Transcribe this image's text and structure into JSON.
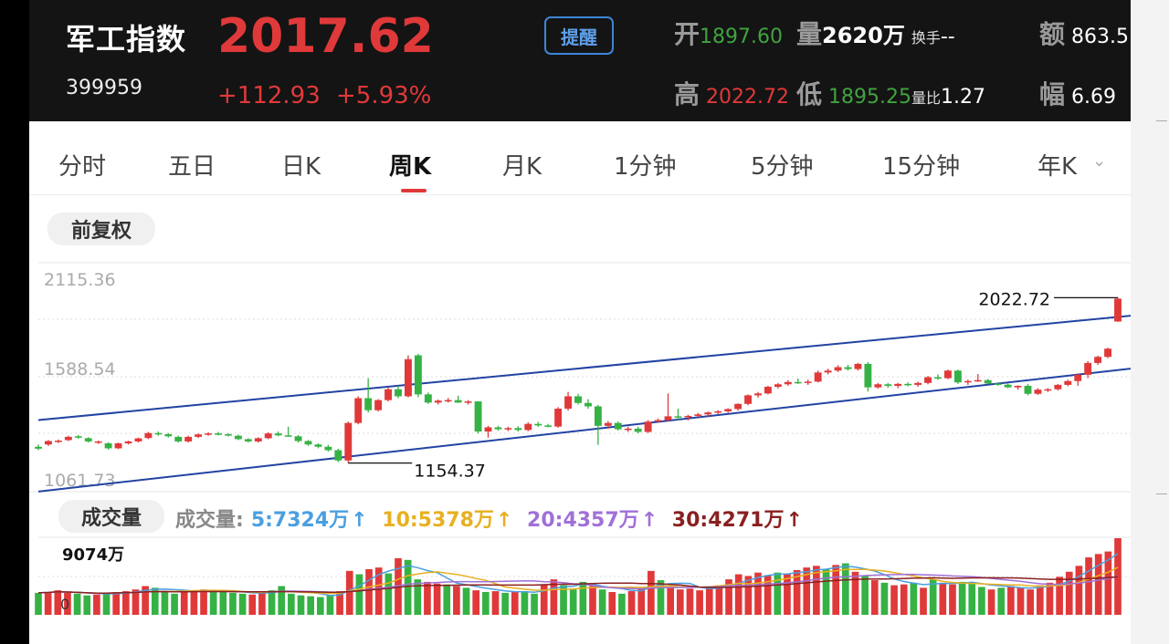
{
  "header": {
    "name": "军工指数",
    "code": "399959",
    "price": "2017.62",
    "change": "+112.93",
    "change_pct": "+5.93%",
    "alert_label": "提醒",
    "open_label": "开",
    "open_value": "1897.60",
    "volume_label": "量",
    "volume_value": "2620万",
    "turnover_label": "换手",
    "turnover_value": "--",
    "amount_label": "额",
    "amount_value": "863.5",
    "high_label": "高",
    "high_value": "2022.72",
    "low_label": "低",
    "low_value": "1895.25",
    "vol_ratio_label": "量比",
    "vol_ratio_value": "1.27",
    "amplitude_label": "幅",
    "amplitude_value": "6.69"
  },
  "tabs": [
    {
      "label": "分时"
    },
    {
      "label": "五日"
    },
    {
      "label": "日K"
    },
    {
      "label": "周K",
      "active": true
    },
    {
      "label": "月K"
    },
    {
      "label": "1分钟"
    },
    {
      "label": "5分钟"
    },
    {
      "label": "15分钟"
    },
    {
      "label": "年K"
    }
  ],
  "adjust_label": "前复权",
  "volume_pill_label": "成交量",
  "colors": {
    "up": "#e0393a",
    "down": "#36b245",
    "channel": "#2243a3",
    "ma5": "#4a9fe0",
    "ma10": "#e8b020",
    "ma20": "#a070d8",
    "ma30": "#8a2020"
  },
  "chart_data": [
    {
      "type": "candlestick",
      "title": "周K",
      "y_ticks": [
        "2115.36",
        "1588.54",
        "1061.73"
      ],
      "ylim": [
        1061.73,
        2115.36
      ],
      "annotations": [
        {
          "label": "2022.72",
          "value": 2022.72,
          "note": "最高"
        },
        {
          "label": "1154.37",
          "value": 1154.37,
          "note": "最低"
        }
      ],
      "trend_channel": {
        "upper": [
          1380,
          1928
        ],
        "lower": [
          1005,
          1650
        ]
      },
      "candles": [
        [
          1240,
          1252,
          1222,
          1230
        ],
        [
          1252,
          1275,
          1244,
          1270
        ],
        [
          1268,
          1278,
          1260,
          1272
        ],
        [
          1275,
          1298,
          1270,
          1292
        ],
        [
          1295,
          1302,
          1282,
          1288
        ],
        [
          1285,
          1290,
          1262,
          1268
        ],
        [
          1265,
          1272,
          1255,
          1268
        ],
        [
          1258,
          1264,
          1225,
          1232
        ],
        [
          1232,
          1262,
          1228,
          1258
        ],
        [
          1258,
          1272,
          1252,
          1268
        ],
        [
          1268,
          1288,
          1262,
          1284
        ],
        [
          1286,
          1318,
          1280,
          1312
        ],
        [
          1312,
          1320,
          1298,
          1308
        ],
        [
          1306,
          1312,
          1288,
          1295
        ],
        [
          1292,
          1298,
          1262,
          1268
        ],
        [
          1268,
          1298,
          1262,
          1292
        ],
        [
          1292,
          1310,
          1286,
          1305
        ],
        [
          1305,
          1316,
          1298,
          1310
        ],
        [
          1310,
          1318,
          1300,
          1306
        ],
        [
          1306,
          1312,
          1294,
          1300
        ],
        [
          1298,
          1304,
          1275,
          1280
        ],
        [
          1280,
          1285,
          1262,
          1268
        ],
        [
          1268,
          1290,
          1262,
          1285
        ],
        [
          1285,
          1316,
          1280,
          1310
        ],
        [
          1310,
          1320,
          1295,
          1300
        ],
        [
          1300,
          1345,
          1292,
          1295
        ],
        [
          1295,
          1302,
          1262,
          1270
        ],
        [
          1270,
          1276,
          1245,
          1252
        ],
        [
          1252,
          1258,
          1232,
          1240
        ],
        [
          1240,
          1250,
          1215,
          1222
        ],
        [
          1222,
          1230,
          1160,
          1168
        ],
        [
          1168,
          1372,
          1154.37,
          1365
        ],
        [
          1365,
          1505,
          1358,
          1495
        ],
        [
          1495,
          1600,
          1420,
          1432
        ],
        [
          1432,
          1490,
          1425,
          1485
        ],
        [
          1485,
          1550,
          1478,
          1542
        ],
        [
          1542,
          1560,
          1495,
          1505
        ],
        [
          1505,
          1720,
          1500,
          1700
        ],
        [
          1720,
          1728,
          1500,
          1515
        ],
        [
          1515,
          1525,
          1465,
          1472
        ],
        [
          1472,
          1488,
          1462,
          1482
        ],
        [
          1482,
          1496,
          1472,
          1485
        ],
        [
          1485,
          1508,
          1470,
          1472
        ],
        [
          1472,
          1485,
          1462,
          1478
        ],
        [
          1478,
          1480,
          1310,
          1320
        ],
        [
          1320,
          1350,
          1288,
          1342
        ],
        [
          1342,
          1350,
          1325,
          1332
        ],
        [
          1332,
          1345,
          1322,
          1338
        ],
        [
          1338,
          1348,
          1320,
          1328
        ],
        [
          1328,
          1368,
          1322,
          1360
        ],
        [
          1360,
          1370,
          1345,
          1352
        ],
        [
          1352,
          1360,
          1342,
          1346
        ],
        [
          1346,
          1448,
          1340,
          1440
        ],
        [
          1440,
          1528,
          1430,
          1505
        ],
        [
          1505,
          1518,
          1462,
          1470
        ],
        [
          1470,
          1490,
          1440,
          1452
        ],
        [
          1452,
          1460,
          1250,
          1350
        ],
        [
          1350,
          1375,
          1335,
          1365
        ],
        [
          1365,
          1372,
          1325,
          1332
        ],
        [
          1332,
          1345,
          1318,
          1335
        ],
        [
          1335,
          1345,
          1310,
          1318
        ],
        [
          1318,
          1380,
          1312,
          1372
        ],
        [
          1372,
          1388,
          1368,
          1380
        ],
        [
          1380,
          1520,
          1372,
          1400
        ],
        [
          1400,
          1440,
          1380,
          1395
        ],
        [
          1395,
          1408,
          1378,
          1402
        ],
        [
          1402,
          1418,
          1395,
          1410
        ],
        [
          1410,
          1425,
          1398,
          1420
        ],
        [
          1420,
          1432,
          1412,
          1426
        ],
        [
          1426,
          1442,
          1418,
          1438
        ],
        [
          1438,
          1468,
          1430,
          1465
        ],
        [
          1465,
          1515,
          1458,
          1510
        ],
        [
          1510,
          1528,
          1498,
          1520
        ],
        [
          1520,
          1560,
          1515,
          1555
        ],
        [
          1555,
          1575,
          1545,
          1568
        ],
        [
          1568,
          1590,
          1560,
          1580
        ],
        [
          1580,
          1598,
          1570,
          1575
        ],
        [
          1575,
          1592,
          1565,
          1582
        ],
        [
          1582,
          1640,
          1578,
          1630
        ],
        [
          1630,
          1650,
          1620,
          1640
        ],
        [
          1640,
          1668,
          1632,
          1658
        ],
        [
          1658,
          1670,
          1640,
          1648
        ],
        [
          1648,
          1680,
          1640,
          1675
        ],
        [
          1675,
          1685,
          1530,
          1552
        ],
        [
          1552,
          1575,
          1545,
          1568
        ],
        [
          1568,
          1575,
          1550,
          1560
        ],
        [
          1560,
          1575,
          1548,
          1570
        ],
        [
          1570,
          1578,
          1558,
          1565
        ],
        [
          1565,
          1582,
          1555,
          1575
        ],
        [
          1575,
          1612,
          1568,
          1605
        ],
        [
          1605,
          1620,
          1592,
          1600
        ],
        [
          1600,
          1645,
          1595,
          1640
        ],
        [
          1640,
          1645,
          1570,
          1578
        ],
        [
          1578,
          1592,
          1565,
          1585
        ],
        [
          1585,
          1622,
          1580,
          1590
        ],
        [
          1590,
          1596,
          1568,
          1572
        ],
        [
          1572,
          1578,
          1560,
          1566
        ],
        [
          1566,
          1572,
          1548,
          1552
        ],
        [
          1552,
          1562,
          1540,
          1560
        ],
        [
          1560,
          1570,
          1510,
          1518
        ],
        [
          1518,
          1548,
          1512,
          1540
        ],
        [
          1540,
          1548,
          1528,
          1542
        ],
        [
          1542,
          1570,
          1535,
          1565
        ],
        [
          1565,
          1592,
          1558,
          1585
        ],
        [
          1585,
          1625,
          1560,
          1618
        ],
        [
          1618,
          1690,
          1600,
          1680
        ],
        [
          1680,
          1718,
          1670,
          1712
        ],
        [
          1712,
          1760,
          1705,
          1755
        ],
        [
          1897.6,
          2022.72,
          1895.25,
          2017.62
        ]
      ]
    },
    {
      "type": "bar",
      "title": "成交量",
      "max_label": "9074万",
      "zero_label": "0",
      "ma_legend": [
        {
          "label": "成交量:",
          "color": "#888888"
        },
        {
          "label": "5:7324万",
          "color": "#4a9fe0"
        },
        {
          "label": "10:5378万",
          "color": "#e8b020"
        },
        {
          "label": "20:4357万",
          "color": "#a070d8"
        },
        {
          "label": "30:4271万",
          "color": "#8a2020"
        }
      ],
      "ylim": [
        0,
        9074
      ],
      "values": [
        2600,
        2700,
        2900,
        2600,
        2500,
        2300,
        2400,
        2600,
        2700,
        2800,
        3000,
        3400,
        3200,
        2800,
        2500,
        2700,
        2900,
        3000,
        2800,
        2700,
        2600,
        2500,
        2400,
        2700,
        2900,
        3400,
        2500,
        2300,
        2200,
        2100,
        2300,
        2800,
        5200,
        4800,
        5400,
        5600,
        4900,
        6700,
        6500,
        4200,
        3900,
        3700,
        3600,
        3400,
        3200,
        2900,
        2700,
        2800,
        2600,
        2700,
        2800,
        2500,
        3600,
        4200,
        3500,
        3100,
        3900,
        3400,
        3000,
        2700,
        2500,
        2800,
        3200,
        5200,
        4100,
        3200,
        3000,
        3100,
        2900,
        3300,
        3500,
        4200,
        4800,
        4600,
        5000,
        4700,
        5000,
        4900,
        5300,
        5600,
        5800,
        5400,
        5900,
        6100,
        5100,
        4700,
        4100,
        3800,
        3500,
        3600,
        3800,
        3200,
        4200,
        3800,
        3600,
        3900,
        3800,
        3300,
        3000,
        3200,
        3400,
        3200,
        3000,
        3500,
        3800,
        4500,
        5100,
        5800,
        6800,
        7200,
        7500,
        9074
      ]
    }
  ]
}
